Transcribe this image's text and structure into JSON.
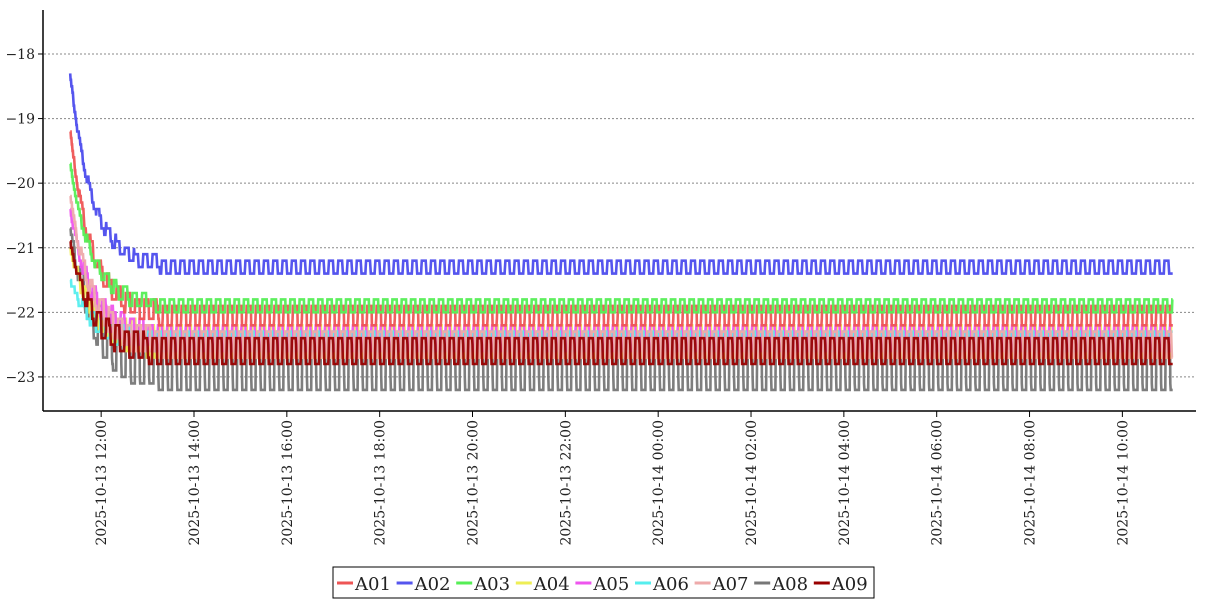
{
  "chart_data": {
    "type": "line",
    "title": "",
    "xlabel": "",
    "ylabel": "",
    "x_start": "2025-10-13 11:20",
    "x_end": "2025-10-14 11:05",
    "xlim": [
      "2025-10-13 10:50",
      "2025-10-14 11:30"
    ],
    "ylim": [
      -23.45,
      -17.35
    ],
    "grid": "horizontal-dotted",
    "legend_position": "bottom-center",
    "y_ticks": [
      {
        "value": -18,
        "label": "−18"
      },
      {
        "value": -19,
        "label": "−19"
      },
      {
        "value": -20,
        "label": "−20"
      },
      {
        "value": -21,
        "label": "−21"
      },
      {
        "value": -22,
        "label": "−22"
      },
      {
        "value": -23,
        "label": "−23"
      }
    ],
    "x_ticks": [
      {
        "value": "2025-10-13 12:00",
        "label": "2025-10-13  12:00"
      },
      {
        "value": "2025-10-13 14:00",
        "label": "2025-10-13  14:00"
      },
      {
        "value": "2025-10-13 16:00",
        "label": "2025-10-13  16:00"
      },
      {
        "value": "2025-10-13 18:00",
        "label": "2025-10-13  18:00"
      },
      {
        "value": "2025-10-13 20:00",
        "label": "2025-10-13  20:00"
      },
      {
        "value": "2025-10-13 22:00",
        "label": "2025-10-13  22:00"
      },
      {
        "value": "2025-10-14 00:00",
        "label": "2025-10-14  00:00"
      },
      {
        "value": "2025-10-14 02:00",
        "label": "2025-10-14  02:00"
      },
      {
        "value": "2025-10-14 04:00",
        "label": "2025-10-14  04:00"
      },
      {
        "value": "2025-10-14 06:00",
        "label": "2025-10-14  06:00"
      },
      {
        "value": "2025-10-14 08:00",
        "label": "2025-10-14  08:00"
      },
      {
        "value": "2025-10-14 10:00",
        "label": "2025-10-14  10:00"
      }
    ],
    "series": [
      {
        "name": "A01",
        "color": "#ee5555",
        "start": -19.2,
        "low": -22.2,
        "high": -21.9,
        "cycle_minutes": 12
      },
      {
        "name": "A02",
        "color": "#5555ee",
        "start": -18.3,
        "low": -21.4,
        "high": -21.2,
        "cycle_minutes": 12
      },
      {
        "name": "A03",
        "color": "#55ee55",
        "start": -19.7,
        "low": -22.0,
        "high": -21.8,
        "cycle_minutes": 12
      },
      {
        "name": "A04",
        "color": "#eeee55",
        "start": -21.0,
        "low": -22.7,
        "high": -22.2,
        "cycle_minutes": 12
      },
      {
        "name": "A05",
        "color": "#ee55ee",
        "start": -20.4,
        "low": -22.6,
        "high": -22.2,
        "cycle_minutes": 12
      },
      {
        "name": "A06",
        "color": "#55eeee",
        "start": -21.5,
        "low": -22.6,
        "high": -22.3,
        "cycle_minutes": 12
      },
      {
        "name": "A07",
        "color": "#eeaaaa",
        "start": -20.2,
        "low": -22.7,
        "high": -22.3,
        "cycle_minutes": 12
      },
      {
        "name": "A08",
        "color": "#777777",
        "start": -20.7,
        "low": -23.2,
        "high": -22.3,
        "cycle_minutes": 12
      },
      {
        "name": "A09",
        "color": "#990000",
        "start": -20.9,
        "low": -22.8,
        "high": -22.4,
        "cycle_minutes": 12
      }
    ]
  }
}
